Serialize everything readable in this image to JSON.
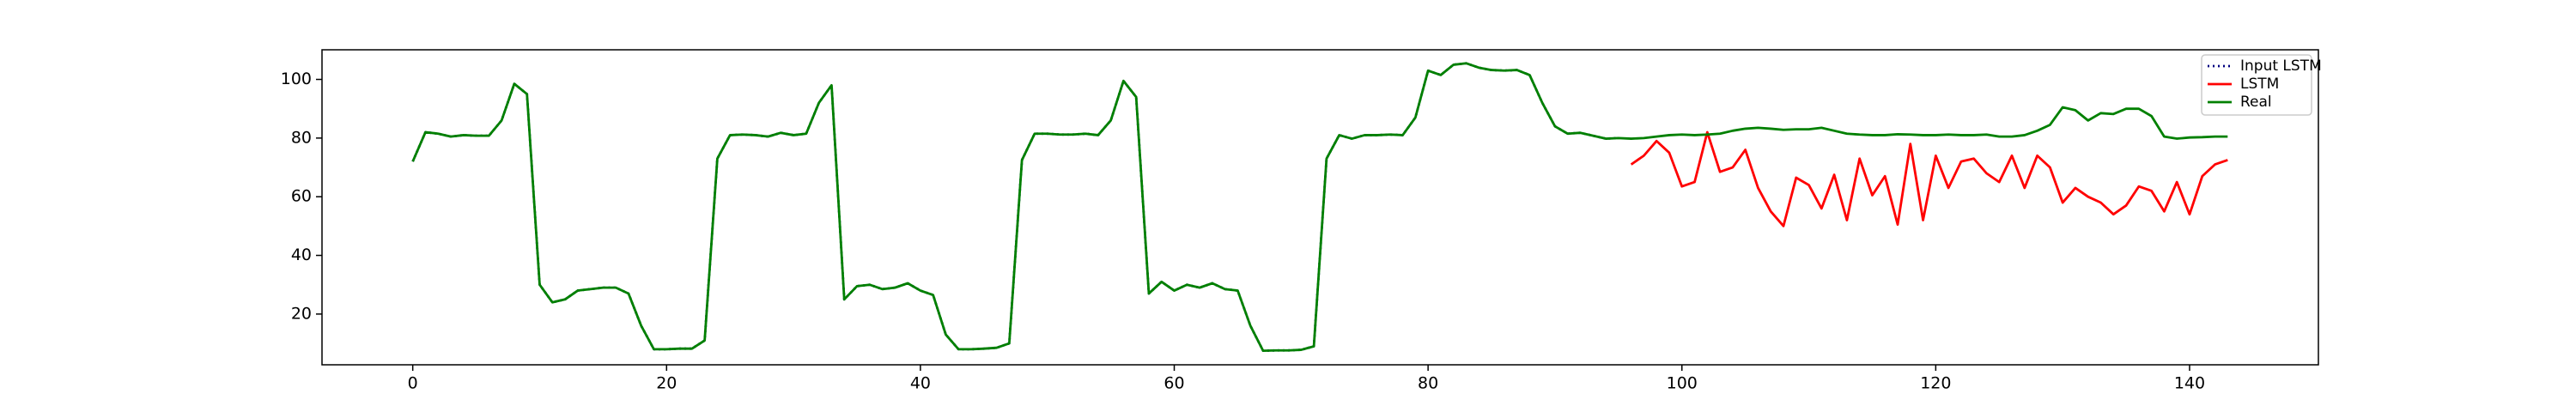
{
  "chart_data": {
    "type": "line",
    "x": [
      0,
      1,
      2,
      3,
      4,
      5,
      6,
      7,
      8,
      9,
      10,
      11,
      12,
      13,
      14,
      15,
      16,
      17,
      18,
      19,
      20,
      21,
      22,
      23,
      24,
      25,
      26,
      27,
      28,
      29,
      30,
      31,
      32,
      33,
      34,
      35,
      36,
      37,
      38,
      39,
      40,
      41,
      42,
      43,
      44,
      45,
      46,
      47,
      48,
      49,
      50,
      51,
      52,
      53,
      54,
      55,
      56,
      57,
      58,
      59,
      60,
      61,
      62,
      63,
      64,
      65,
      66,
      67,
      68,
      69,
      70,
      71,
      72,
      73,
      74,
      75,
      76,
      77,
      78,
      79,
      80,
      81,
      82,
      83,
      84,
      85,
      86,
      87,
      88,
      89,
      90,
      91,
      92,
      93,
      94,
      95,
      96,
      97,
      98,
      99,
      100,
      101,
      102,
      103,
      104,
      105,
      106,
      107,
      108,
      109,
      110,
      111,
      112,
      113,
      114,
      115,
      116,
      117,
      118,
      119,
      120,
      121,
      122,
      123,
      124,
      125,
      126,
      127,
      128,
      129,
      130,
      131,
      132,
      133,
      134,
      135,
      136,
      137,
      138,
      139,
      140,
      141,
      142,
      143
    ],
    "series": [
      {
        "name": "Input LSTM",
        "color": "#000080",
        "dash": "dotted",
        "values": [
          72,
          82,
          81.5,
          80.5,
          81,
          80.8,
          80.8,
          86,
          98.5,
          95,
          30,
          24,
          25,
          28,
          28.5,
          29,
          29,
          27,
          16,
          8,
          8,
          8.2,
          8.2,
          11,
          73,
          81,
          81.2,
          81,
          80.5,
          81.8,
          81,
          81.5,
          92,
          98,
          25,
          29.5,
          30,
          28.5,
          29,
          30.5,
          28,
          26.5,
          13,
          8,
          8,
          8.2,
          8.5,
          10,
          72.5,
          81.5,
          81.5,
          81.2,
          81.2,
          81.5,
          81,
          86,
          99.5,
          94,
          27,
          31,
          28,
          30,
          29,
          30.5,
          28.5,
          28,
          16,
          7.5,
          7.6,
          7.6,
          7.8,
          9,
          73,
          81,
          79.8,
          81,
          81,
          81.2,
          81,
          87,
          103,
          101.5,
          105,
          105.5,
          104,
          103.2,
          103,
          103.2,
          101.5,
          92,
          84,
          81.5,
          81.8,
          80.8,
          79.8,
          80,
          null,
          null,
          null,
          null,
          null,
          null,
          null,
          null,
          null,
          null,
          null,
          null,
          null,
          null,
          null,
          null,
          null,
          null,
          null,
          null,
          null,
          null,
          null,
          null,
          null,
          null,
          null,
          null,
          null,
          null,
          null,
          null,
          null,
          null,
          null,
          null,
          null,
          null,
          null,
          null,
          null,
          null,
          null,
          null,
          null,
          null,
          null,
          null
        ]
      },
      {
        "name": "LSTM",
        "color": "#ff0000",
        "values": [
          null,
          null,
          null,
          null,
          null,
          null,
          null,
          null,
          null,
          null,
          null,
          null,
          null,
          null,
          null,
          null,
          null,
          null,
          null,
          null,
          null,
          null,
          null,
          null,
          null,
          null,
          null,
          null,
          null,
          null,
          null,
          null,
          null,
          null,
          null,
          null,
          null,
          null,
          null,
          null,
          null,
          null,
          null,
          null,
          null,
          null,
          null,
          null,
          null,
          null,
          null,
          null,
          null,
          null,
          null,
          null,
          null,
          null,
          null,
          null,
          null,
          null,
          null,
          null,
          null,
          null,
          null,
          null,
          null,
          null,
          null,
          null,
          null,
          null,
          null,
          null,
          null,
          null,
          null,
          null,
          null,
          null,
          null,
          null,
          null,
          null,
          null,
          null,
          null,
          null,
          null,
          null,
          null,
          null,
          null,
          null,
          71,
          74,
          79,
          75,
          63.5,
          65,
          82,
          68.5,
          70,
          76,
          63,
          55,
          50,
          66.5,
          64,
          56,
          67.5,
          52,
          73,
          60.5,
          67,
          50.5,
          78,
          52,
          74,
          63,
          72,
          73,
          68,
          65,
          74,
          63,
          74,
          70,
          58,
          63,
          60,
          58,
          54,
          57,
          63.5,
          62,
          55,
          65,
          54,
          67,
          71,
          72.5
        ]
      },
      {
        "name": "Real",
        "color": "#008000",
        "values": [
          72,
          82,
          81.5,
          80.5,
          81,
          80.8,
          80.8,
          86,
          98.5,
          95,
          30,
          24,
          25,
          28,
          28.5,
          29,
          29,
          27,
          16,
          8,
          8,
          8.2,
          8.2,
          11,
          73,
          81,
          81.2,
          81,
          80.5,
          81.8,
          81,
          81.5,
          92,
          98,
          25,
          29.5,
          30,
          28.5,
          29,
          30.5,
          28,
          26.5,
          13,
          8,
          8,
          8.2,
          8.5,
          10,
          72.5,
          81.5,
          81.5,
          81.2,
          81.2,
          81.5,
          81,
          86,
          99.5,
          94,
          27,
          31,
          28,
          30,
          29,
          30.5,
          28.5,
          28,
          16,
          7.5,
          7.6,
          7.6,
          7.8,
          9,
          73,
          81,
          79.8,
          81,
          81,
          81.2,
          81,
          87,
          103,
          101.5,
          105,
          105.5,
          104,
          103.2,
          103,
          103.2,
          101.5,
          92,
          84,
          81.5,
          81.8,
          80.8,
          79.8,
          80,
          79.8,
          80,
          80.5,
          81,
          81.2,
          81,
          81.2,
          81.5,
          82.5,
          83.2,
          83.5,
          83.2,
          82.8,
          83,
          83,
          83.5,
          82.5,
          81.5,
          81.2,
          81,
          81,
          81.3,
          81.2,
          81,
          81,
          81.2,
          81,
          81,
          81.2,
          80.5,
          80.5,
          81,
          82.5,
          84.5,
          90.5,
          89.5,
          86,
          88.5,
          88.2,
          90,
          90,
          87.5,
          80.5,
          79.8,
          80.2,
          80.3,
          80.5,
          80.5
        ]
      }
    ],
    "xlim": [
      -7.15,
      150.15
    ],
    "xticks": [
      0,
      20,
      40,
      60,
      80,
      100,
      120,
      140
    ],
    "ylim": [
      2.7,
      110.1
    ],
    "yticks": [
      20,
      40,
      60,
      80,
      100
    ],
    "legend": "upper right"
  }
}
